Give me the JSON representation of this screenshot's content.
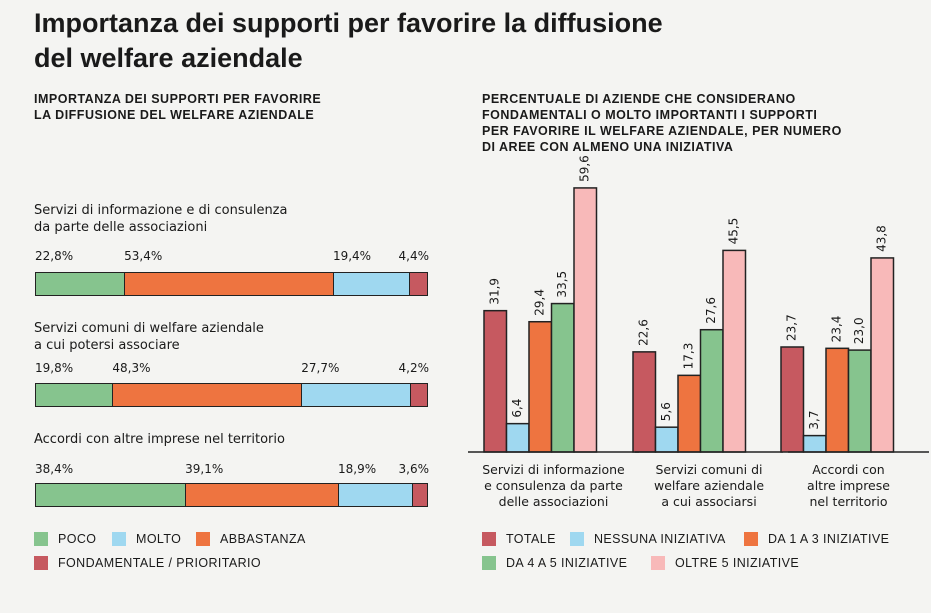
{
  "title_line1": "Importanza dei supporti per favorire la diffusione",
  "title_line2": "del welfare aziendale",
  "colors": {
    "poco": "#86c48e",
    "molto": "#9fd8f0",
    "abbastanza": "#ee7440",
    "fondamentale": "#c65960",
    "totale": "#c65960",
    "nessuna": "#9fd8f0",
    "da1a3": "#ee7440",
    "da4a5": "#86c48e",
    "oltre5": "#f8b9b9"
  },
  "left": {
    "subtitle_line1": "IMPORTANZA DEI SUPPORTI PER FAVORIRE",
    "subtitle_line2": "LA DIFFUSIONE DEL WELFARE AZIENDALE",
    "legend": {
      "poco": "POCO",
      "molto": "MOLTO",
      "abbastanza": "ABBASTANZA",
      "fondamentale": "FONDAMENTALE / PRIORITARIO"
    }
  },
  "right": {
    "subtitle_line1": "PERCENTUALE DI AZIENDE CHE CONSIDERANO",
    "subtitle_line2": "FONDAMENTALI O MOLTO IMPORTANTI I SUPPORTI",
    "subtitle_line3": "PER FAVORIRE IL WELFARE AZIENDALE, PER NUMERO",
    "subtitle_line4": "DI AREE CON ALMENO UNA INIZIATIVA",
    "legend": {
      "totale": "TOTALE",
      "nessuna": "NESSUNA INIZIATIVA",
      "da1a3": "DA 1 A 3 INIZIATIVE",
      "da4a5": "DA 4 A 5 INIZIATIVE",
      "oltre5": "OLTRE 5 INIZIATIVE"
    }
  },
  "chart_data": [
    {
      "type": "bar",
      "orientation": "horizontal-stacked",
      "title": "IMPORTANZA DEI SUPPORTI PER FAVORIRE LA DIFFUSIONE DEL WELFARE AZIENDALE",
      "categories": [
        [
          "Servizi di informazione e di consulenza",
          "da parte delle associazioni"
        ],
        [
          "Servizi comuni di welfare aziendale",
          "a cui potersi associare"
        ],
        [
          "Accordi con altre imprese nel territorio"
        ]
      ],
      "series": [
        {
          "name": "POCO",
          "values": [
            22.8,
            19.8,
            38.4
          ],
          "labels": [
            "22,8%",
            "19,8%",
            "38,4%"
          ]
        },
        {
          "name": "ABBASTANZA",
          "values": [
            53.4,
            48.3,
            39.1
          ],
          "labels": [
            "53,4%",
            "48,3%",
            "39,1%"
          ]
        },
        {
          "name": "MOLTO",
          "values": [
            19.4,
            27.7,
            18.9
          ],
          "labels": [
            "19,4%",
            "27,7%",
            "18,9%"
          ]
        },
        {
          "name": "FONDAMENTALE / PRIORITARIO",
          "values": [
            4.4,
            4.2,
            3.6
          ],
          "labels": [
            "4,4%",
            "4,2%",
            "3,6%"
          ]
        }
      ],
      "legend": "bottom"
    },
    {
      "type": "bar",
      "orientation": "vertical-grouped",
      "title": "PERCENTUALE DI AZIENDE CHE CONSIDERANO FONDAMENTALI O MOLTO IMPORTANTI I SUPPORTI PER FAVORIRE IL WELFARE AZIENDALE, PER NUMERO DI AREE CON ALMENO UNA INIZIATIVA",
      "categories": [
        [
          "Servizi di informazione",
          "e consulenza da parte",
          "delle associazioni"
        ],
        [
          "Servizi comuni di",
          "welfare aziendale",
          "a cui associarsi"
        ],
        [
          "Accordi con",
          "altre imprese",
          "nel territorio"
        ]
      ],
      "series": [
        {
          "name": "TOTALE",
          "values": [
            31.9,
            22.6,
            23.7
          ],
          "labels": [
            "31,9",
            "22,6",
            "23,7"
          ]
        },
        {
          "name": "NESSUNA INIZIATIVA",
          "values": [
            6.4,
            5.6,
            3.7
          ],
          "labels": [
            "6,4",
            "5,6",
            "3,7"
          ]
        },
        {
          "name": "DA 1 A 3 INIZIATIVE",
          "values": [
            29.4,
            17.3,
            23.4
          ],
          "labels": [
            "29,4",
            "17,3",
            "23,4"
          ]
        },
        {
          "name": "DA 4 A 5 INIZIATIVE",
          "values": [
            33.5,
            27.6,
            23.0
          ],
          "labels": [
            "33,5",
            "27,6",
            "23,0"
          ]
        },
        {
          "name": "OLTRE 5 INIZIATIVE",
          "values": [
            59.6,
            45.5,
            43.8
          ],
          "labels": [
            "59,6",
            "45,5",
            "43,8"
          ]
        }
      ],
      "ylim": [
        0,
        65
      ],
      "grid": false,
      "legend": "bottom"
    }
  ]
}
